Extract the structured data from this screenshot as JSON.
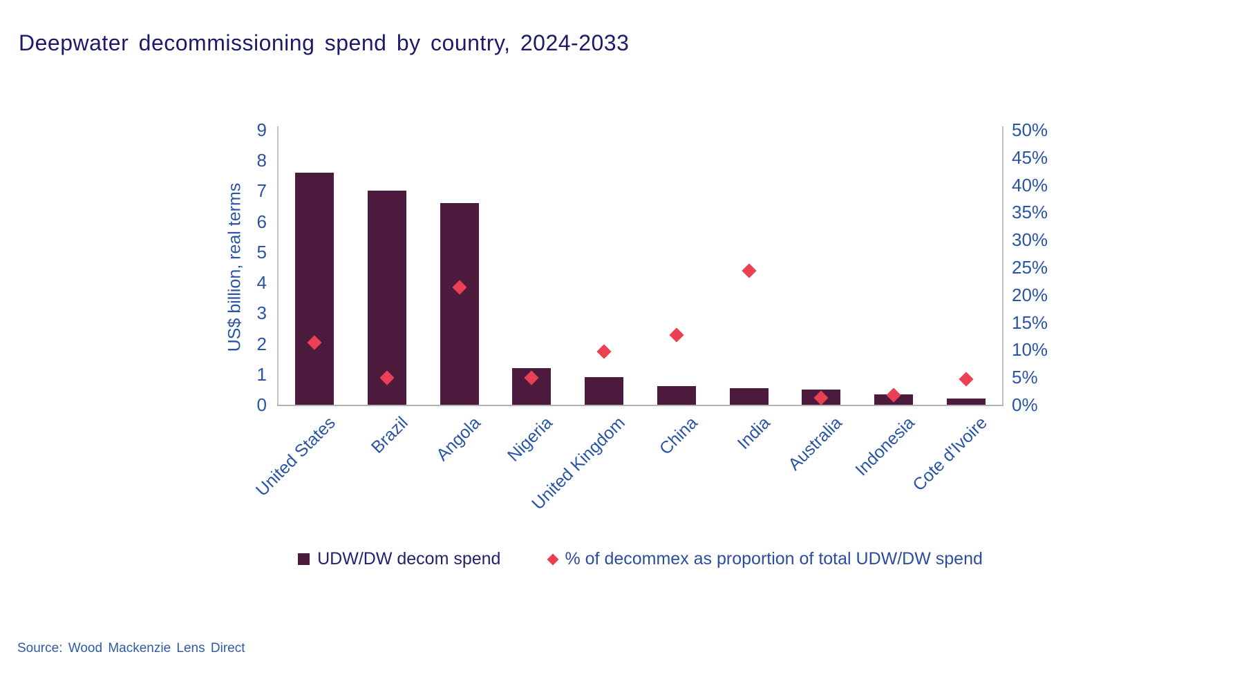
{
  "title": "Deepwater decommissioning spend by country, 2024-2033",
  "source": "Source: Wood Mackenzie Lens Direct",
  "colors": {
    "bar": "#4c1a3d",
    "marker": "#ea4053",
    "tick_text": "#2a54a4",
    "title_text": "#1b1b6a",
    "source_text": "#2e5aaa",
    "axis_line": "#bfbfbf",
    "baseline": "#b3b3b3"
  },
  "legend": [
    {
      "label": "UDW/DW decom spend",
      "marker": "square",
      "marker_color": "#4c1a3d",
      "text_color": "#22226e"
    },
    {
      "label": "% of decommex as proportion of total UDW/DW spend",
      "marker": "diamond",
      "marker_color": "#ea4053",
      "text_color": "#2b4da1"
    }
  ],
  "chart_data": {
    "type": "bar",
    "title": "Deepwater decommissioning spend by country, 2024-2033",
    "categories": [
      "United States",
      "Brazil",
      "Angola",
      "Nigeria",
      "United Kingdom",
      "China",
      "India",
      "Australia",
      "Indonesia",
      "Cote d'Ivoire"
    ],
    "series": [
      {
        "name": "UDW/DW decom spend",
        "type": "bar",
        "axis": "left",
        "color": "#4c1a3d",
        "values": [
          7.6,
          7.0,
          6.6,
          1.2,
          0.9,
          0.6,
          0.55,
          0.5,
          0.35,
          0.2
        ]
      },
      {
        "name": "% of decommex as proportion of total UDW/DW spend",
        "type": "scatter",
        "marker": "diamond",
        "axis": "right",
        "color": "#ea4053",
        "values": [
          11.3,
          4.9,
          21.3,
          4.9,
          9.7,
          12.7,
          24.4,
          1.2,
          1.7,
          4.6
        ]
      }
    ],
    "left_axis": {
      "label": "US$ billion, real terms",
      "min": 0,
      "max": 9,
      "step": 1,
      "ticks": [
        "0",
        "1",
        "2",
        "3",
        "4",
        "5",
        "6",
        "7",
        "8",
        "9"
      ]
    },
    "right_axis": {
      "label": "",
      "min": 0,
      "max": 50,
      "step": 5,
      "unit": "%",
      "ticks": [
        "0%",
        "5%",
        "10%",
        "15%",
        "20%",
        "25%",
        "30%",
        "35%",
        "40%",
        "45%",
        "50%"
      ]
    },
    "grid": false,
    "legend_position": "bottom"
  }
}
